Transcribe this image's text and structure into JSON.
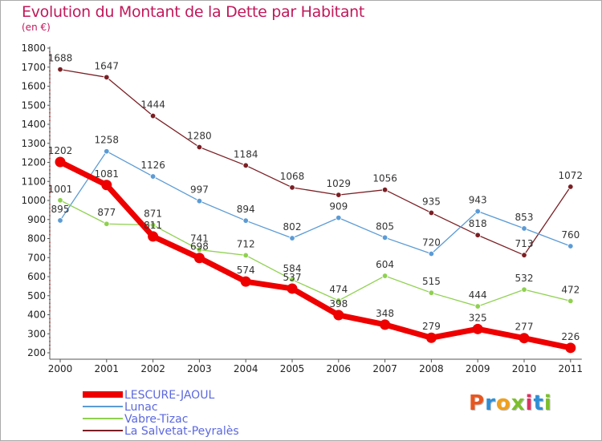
{
  "header": {
    "title": "Evolution du Montant de la Dette par Habitant",
    "subtitle": "(en €)"
  },
  "brand": {
    "text": "Proxiti",
    "colors": [
      "#e8561e",
      "#2e8fd6",
      "#f0a01c",
      "#7cbf2c",
      "#e03060",
      "#2e8fd6",
      "#7cbf2c"
    ]
  },
  "chart_data": {
    "type": "line",
    "title": "Evolution du Montant de la Dette par Habitant",
    "ylabel": "(en €)",
    "xlabel": "",
    "x": [
      "2000",
      "2001",
      "2002",
      "2003",
      "2004",
      "2005",
      "2006",
      "2007",
      "2008",
      "2009",
      "2010",
      "2011"
    ],
    "ylim": [
      200,
      1800
    ],
    "yticks": [
      200,
      300,
      400,
      500,
      600,
      700,
      800,
      900,
      1000,
      1100,
      1200,
      1300,
      1400,
      1500,
      1600,
      1700,
      1800
    ],
    "grid": false,
    "legend_position": "bottom-left",
    "series": [
      {
        "name": "LESCURE-JAOUL",
        "color": "#ee0000",
        "values": [
          1202,
          1081,
          811,
          698,
          574,
          537,
          398,
          348,
          279,
          325,
          277,
          226
        ]
      },
      {
        "name": "Lunac",
        "color": "#5b9bd5",
        "values": [
          895,
          1258,
          1126,
          997,
          894,
          802,
          909,
          805,
          720,
          943,
          853,
          760
        ]
      },
      {
        "name": "Vabre-Tizac",
        "color": "#8fd14f",
        "values": [
          1001,
          877,
          871,
          741,
          712,
          584,
          474,
          604,
          515,
          444,
          532,
          472
        ]
      },
      {
        "name": "La Salvetat-Peyralès",
        "color": "#7a1f24",
        "values": [
          1688,
          1647,
          1444,
          1280,
          1184,
          1068,
          1029,
          1056,
          935,
          818,
          713,
          1072
        ]
      }
    ]
  }
}
